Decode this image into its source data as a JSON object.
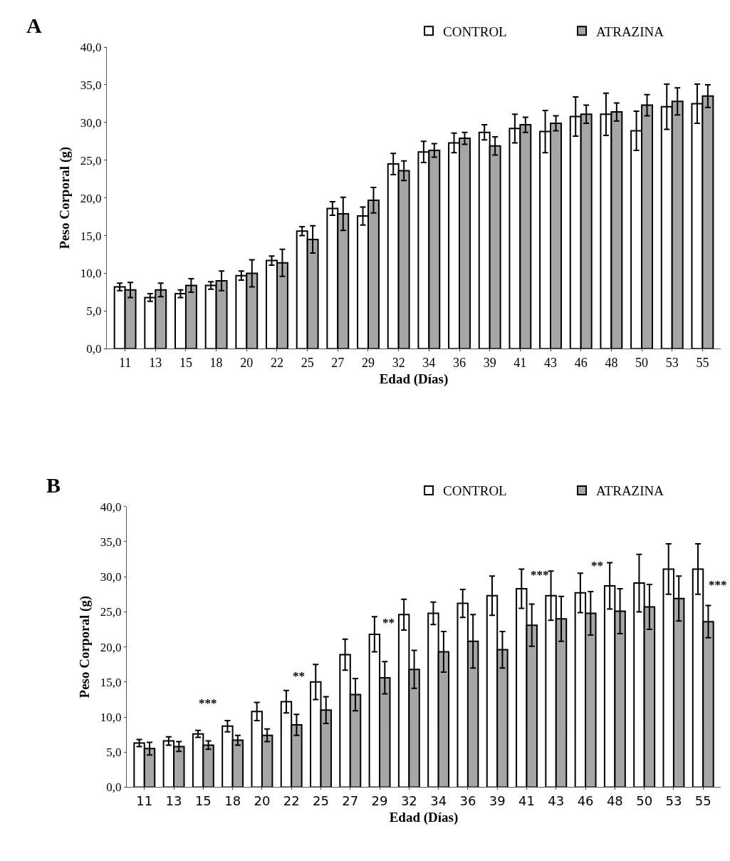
{
  "chart_data": [
    {
      "type": "bar",
      "title": "A",
      "xlabel": "Edad (Días)",
      "ylabel": "Peso Corporal (g)",
      "categories": [
        "11",
        "13",
        "15",
        "18",
        "20",
        "22",
        "25",
        "27",
        "29",
        "32",
        "34",
        "36",
        "39",
        "41",
        "43",
        "46",
        "48",
        "50",
        "53",
        "55"
      ],
      "series": [
        {
          "name": "CONTROL",
          "color": "#ffffff",
          "values": [
            8.2,
            6.8,
            7.3,
            8.4,
            9.7,
            11.7,
            15.6,
            18.6,
            17.6,
            24.5,
            26.1,
            27.3,
            28.7,
            29.2,
            28.8,
            30.8,
            31.1,
            28.9,
            32.1,
            32.5
          ],
          "errors": [
            0.5,
            0.5,
            0.5,
            0.5,
            0.6,
            0.6,
            0.6,
            0.9,
            1.2,
            1.4,
            1.4,
            1.3,
            1.0,
            1.9,
            2.8,
            2.6,
            2.8,
            2.6,
            3.0,
            2.6
          ]
        },
        {
          "name": "ATRAZINA",
          "color": "#a6a6a6",
          "values": [
            7.8,
            7.8,
            8.4,
            9.0,
            10.0,
            11.4,
            14.5,
            17.9,
            19.7,
            23.6,
            26.3,
            27.9,
            26.9,
            29.7,
            29.9,
            31.1,
            31.4,
            32.3,
            32.8,
            33.5
          ],
          "errors": [
            1.0,
            0.9,
            0.9,
            1.3,
            1.8,
            1.8,
            1.8,
            2.2,
            1.7,
            1.3,
            0.9,
            0.8,
            1.2,
            1.0,
            1.0,
            1.2,
            1.2,
            1.4,
            1.8,
            1.5
          ]
        }
      ],
      "ylim": [
        0,
        40
      ],
      "yticks": [
        {
          "value": 0,
          "label": "0,0"
        },
        {
          "value": 5,
          "label": "5,0"
        },
        {
          "value": 10,
          "label": "10,0"
        },
        {
          "value": 15,
          "label": "15,0"
        },
        {
          "value": 20,
          "label": "20,0"
        },
        {
          "value": 25,
          "label": "25,0"
        },
        {
          "value": 30,
          "label": "30,0"
        },
        {
          "value": 35,
          "label": "35,0"
        },
        {
          "value": 40,
          "label": "40,0"
        }
      ],
      "legend": "top right"
    },
    {
      "type": "bar",
      "title": "B",
      "xlabel": "Edad (Días)",
      "ylabel": "Peso Corporal (g)",
      "categories": [
        "11",
        "13",
        "15",
        "18",
        "20",
        "22",
        "25",
        "27",
        "29",
        "32",
        "34",
        "36",
        "39",
        "41",
        "43",
        "46",
        "48",
        "50",
        "53",
        "55"
      ],
      "series": [
        {
          "name": "CONTROL",
          "color": "#ffffff",
          "values": [
            6.3,
            6.6,
            7.6,
            8.7,
            10.8,
            12.2,
            15.0,
            18.9,
            21.8,
            24.6,
            24.8,
            26.2,
            27.3,
            28.3,
            27.3,
            27.7,
            28.7,
            29.1,
            31.1,
            31.1
          ],
          "errors": [
            0.5,
            0.6,
            0.5,
            0.8,
            1.3,
            1.6,
            2.5,
            2.2,
            2.5,
            2.2,
            1.6,
            2.0,
            2.8,
            2.8,
            3.5,
            2.8,
            3.3,
            4.1,
            3.6,
            3.6
          ]
        },
        {
          "name": "ATRAZINA",
          "color": "#a6a6a6",
          "values": [
            5.5,
            5.8,
            6.0,
            6.7,
            7.4,
            8.9,
            11.0,
            13.2,
            15.6,
            16.8,
            19.3,
            20.8,
            19.6,
            23.1,
            24.0,
            24.8,
            25.1,
            25.7,
            26.9,
            23.6
          ],
          "errors": [
            0.9,
            0.7,
            0.6,
            0.7,
            0.9,
            1.5,
            1.9,
            2.3,
            2.3,
            2.7,
            2.9,
            3.8,
            2.6,
            3.0,
            3.2,
            3.1,
            3.2,
            3.2,
            3.2,
            2.3
          ]
        }
      ],
      "ylim": [
        0,
        40
      ],
      "yticks": [
        {
          "value": 0,
          "label": "0,0"
        },
        {
          "value": 5,
          "label": "5,0"
        },
        {
          "value": 10,
          "label": "10,0"
        },
        {
          "value": 15,
          "label": "15,0"
        },
        {
          "value": 20,
          "label": "20,0"
        },
        {
          "value": 25,
          "label": "25,0"
        },
        {
          "value": 30,
          "label": "30,0"
        },
        {
          "value": 35,
          "label": "35,0"
        },
        {
          "value": 40,
          "label": "40,0"
        }
      ],
      "legend": "top right",
      "annotations": [
        "***",
        "**",
        "**",
        "***",
        "**",
        "***"
      ]
    }
  ]
}
